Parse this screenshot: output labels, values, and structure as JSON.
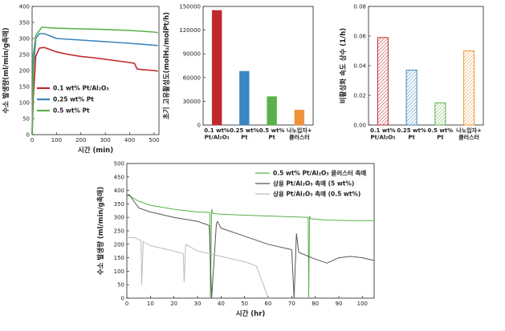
{
  "chart_data": [
    {
      "type": "line",
      "xlabel": "시간 (min)",
      "ylabel": "수소 발생량(ml/min/g촉매)",
      "xlim": [
        0,
        520
      ],
      "ylim": [
        0,
        400
      ],
      "xticks": [
        0,
        100,
        200,
        300,
        400,
        500
      ],
      "yticks": [
        0,
        50,
        100,
        150,
        200,
        250,
        300,
        350,
        400
      ],
      "legend_position": "center-left",
      "series": [
        {
          "name": "0.1 wt% Pt/Al₂O₃",
          "color": "#c0282d",
          "x": [
            0,
            5,
            15,
            30,
            50,
            100,
            150,
            200,
            250,
            300,
            350,
            400,
            420,
            430,
            450,
            500,
            515
          ],
          "y": [
            0,
            120,
            245,
            270,
            272,
            258,
            250,
            244,
            240,
            235,
            230,
            225,
            222,
            205,
            203,
            200,
            198
          ]
        },
        {
          "name": "0.25 wt% Pt",
          "color": "#3a86c0",
          "x": [
            0,
            5,
            15,
            30,
            50,
            100,
            200,
            300,
            400,
            500,
            515
          ],
          "y": [
            0,
            200,
            300,
            315,
            315,
            300,
            295,
            290,
            285,
            279,
            278
          ]
        },
        {
          "name": "0.5 wt% Pt",
          "color": "#5ab04a",
          "x": [
            0,
            5,
            15,
            40,
            100,
            200,
            300,
            400,
            500,
            515
          ],
          "y": [
            0,
            250,
            310,
            335,
            332,
            330,
            328,
            325,
            320,
            318
          ]
        }
      ]
    },
    {
      "type": "bar",
      "ylabel": "초기 고유활성도(molH₂/molPt/h)",
      "ylim": [
        0,
        150000
      ],
      "yticks": [
        0,
        30000,
        60000,
        90000,
        120000,
        150000
      ],
      "categories": [
        "0.1 wt%\nPt/Al₂O₃",
        "0.25 wt%\nPt",
        "0.5 wt%\nPt",
        "나노입자+\n클러스터"
      ],
      "values": [
        145000,
        68000,
        36000,
        19000
      ],
      "colors": [
        "#c0282d",
        "#3a86c0",
        "#5ab04a",
        "#f0923a"
      ]
    },
    {
      "type": "bar",
      "ylabel": "비활성화 속도 상수 (1/h)",
      "ylim": [
        0,
        0.08
      ],
      "yticks": [
        0.0,
        0.02,
        0.04,
        0.06,
        0.08
      ],
      "categories": [
        "0.1 wt%\nPt/Al₂O₃",
        "0.25 wt%\nPt",
        "0.5 wt%\nPt",
        "나노입자+\n클러스터"
      ],
      "values": [
        0.059,
        0.037,
        0.015,
        0.05
      ],
      "colors": [
        "#c0282d",
        "#3a86c0",
        "#5ab04a",
        "#f0923a"
      ],
      "fill": "hatched"
    },
    {
      "type": "line",
      "xlabel": "시간 (hr)",
      "ylabel": "수소 발생량 (ml/min/g촉매)",
      "xlim": [
        0,
        105
      ],
      "ylim": [
        0,
        500
      ],
      "xticks": [
        0,
        10,
        20,
        30,
        40,
        50,
        60,
        70,
        80,
        90,
        100
      ],
      "yticks": [
        0,
        50,
        100,
        150,
        200,
        250,
        300,
        350,
        400,
        450,
        500
      ],
      "legend_position": "top-right",
      "series": [
        {
          "name": "0.5 wt% Pt/Al₂O₃ 클러스터 촉매",
          "color": "#5ab04a",
          "x": [
            0,
            1,
            5,
            10,
            20,
            30,
            35.3,
            35.5,
            36,
            36.5,
            40,
            50,
            60,
            70,
            77,
            77.2,
            77.6,
            78,
            85,
            95,
            105
          ],
          "y": [
            380,
            380,
            360,
            345,
            330,
            320,
            318,
            0,
            330,
            315,
            312,
            308,
            305,
            302,
            300,
            0,
            305,
            295,
            290,
            288,
            288
          ]
        },
        {
          "name": "상용 Pt/Al₂O₃ 촉매 (5 wt%)",
          "color": "#555555",
          "x": [
            0,
            1,
            5,
            10,
            20,
            30,
            35,
            36,
            38,
            38.5,
            40,
            50,
            60,
            70,
            71,
            72,
            73,
            80,
            85,
            90,
            95,
            100,
            105
          ],
          "y": [
            380,
            385,
            335,
            320,
            300,
            285,
            270,
            0,
            275,
            285,
            260,
            230,
            200,
            180,
            0,
            240,
            170,
            145,
            130,
            150,
            155,
            150,
            140
          ]
        },
        {
          "name": "상용 Pt/Al₂O₃ 촉매 (0.5 wt%)",
          "color": "#bbbbbb",
          "x": [
            0,
            3,
            6,
            6.3,
            7,
            10,
            20,
            24,
            24.3,
            25,
            30,
            40,
            50,
            55,
            58,
            60
          ],
          "y": [
            225,
            225,
            215,
            50,
            210,
            195,
            175,
            165,
            60,
            200,
            175,
            155,
            135,
            120,
            50,
            0
          ]
        }
      ]
    }
  ]
}
